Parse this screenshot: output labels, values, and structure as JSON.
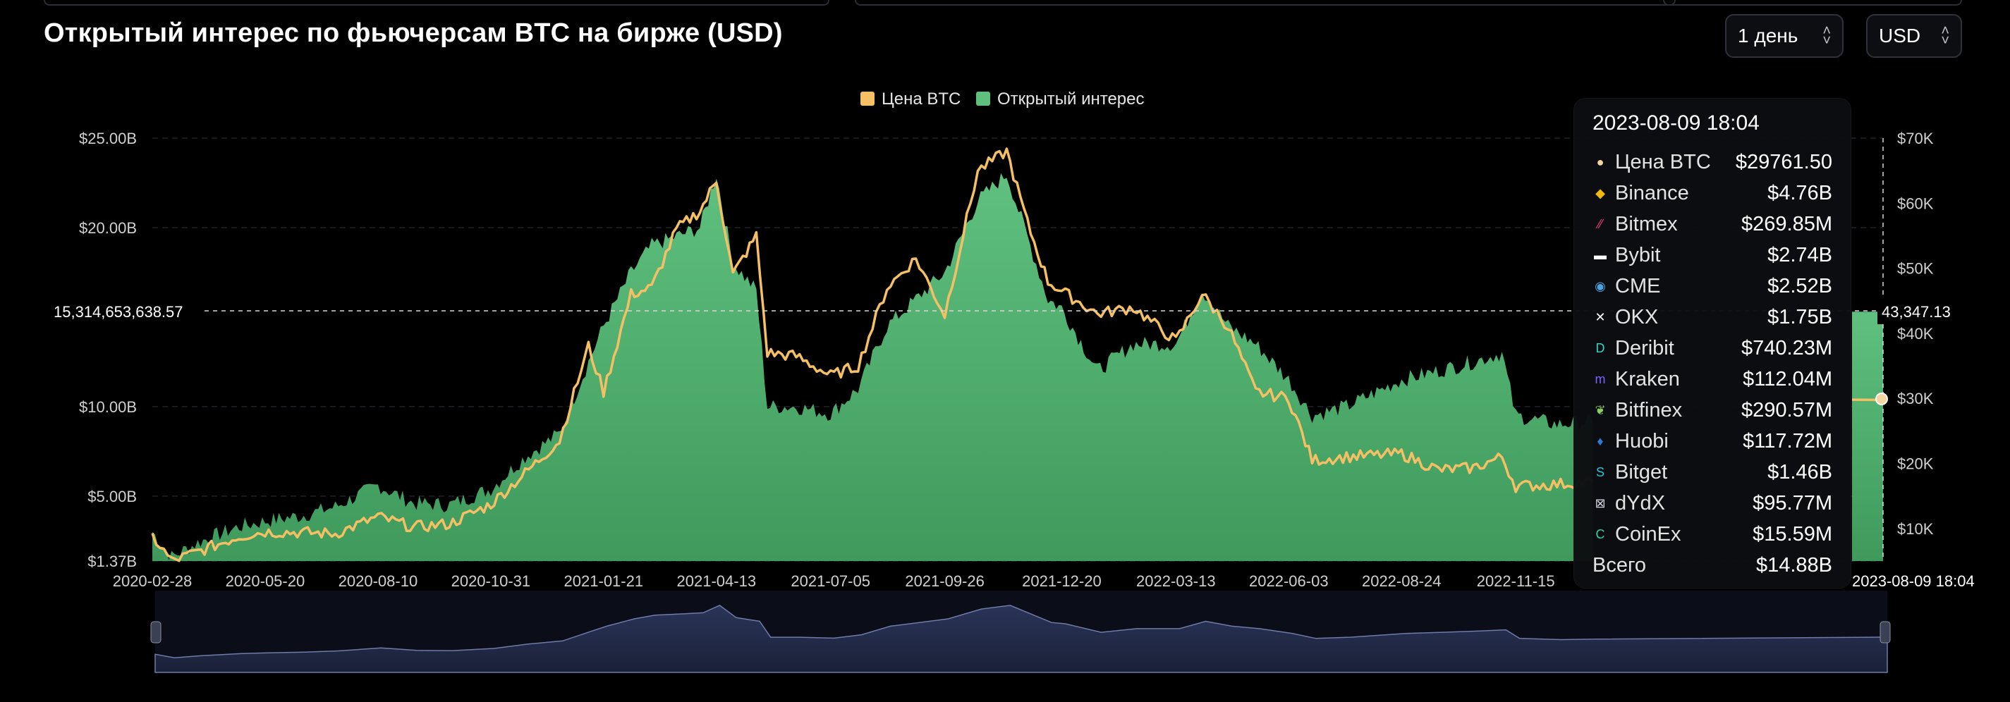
{
  "page": {
    "title": "Открытый интерес по фьючерсам BTC на бирже (USD)",
    "interval_select": "1 день",
    "currency_select": "USD"
  },
  "colors": {
    "background": "#000000",
    "btc_price": "#f5c065",
    "open_interest": "#5fbf7d",
    "navigator": "#1c2540"
  },
  "chart_data": {
    "type": "area",
    "title": "Открытый интерес по фьючерсам BTC на бирже (USD)",
    "legend": {
      "position": "top-center",
      "entries": [
        {
          "name": "Цена BTC",
          "color": "#f5c065"
        },
        {
          "name": "Открытый интерес",
          "color": "#5fbf7d"
        }
      ]
    },
    "x_ticks": [
      "2020-02-28",
      "2020-05-20",
      "2020-08-10",
      "2020-10-31",
      "2021-01-21",
      "2021-04-13",
      "2021-07-05",
      "2021-09-26",
      "2021-12-20",
      "2022-03-13",
      "2022-06-03",
      "2022-08-24",
      "2022-11-15"
    ],
    "y_left_ticks": [
      "$1.37B",
      "$5.00B",
      "$10.00B",
      "$20.00B",
      "$25.00B"
    ],
    "y_right_ticks": [
      "$10K",
      "$20K",
      "$30K",
      "$40K",
      "$50K",
      "$60K",
      "$70K"
    ],
    "y_left_range": [
      1.37,
      25
    ],
    "y_right_range": [
      5000,
      70000
    ],
    "grid": true,
    "crosshair": {
      "left_value": "15,314,653,638.57",
      "right_value": "43,347.13",
      "x_label": "2023-08-09 18:04"
    },
    "series": [
      {
        "name": "Открытый интерес",
        "axis": "left",
        "unit": "B USD",
        "points": [
          [
            "2020-02-28",
            3.0
          ],
          [
            "2020-03-13",
            1.6
          ],
          [
            "2020-04-01",
            2.4
          ],
          [
            "2020-05-01",
            3.3
          ],
          [
            "2020-05-20",
            3.6
          ],
          [
            "2020-06-15",
            3.9
          ],
          [
            "2020-07-10",
            4.4
          ],
          [
            "2020-08-10",
            5.6
          ],
          [
            "2020-09-05",
            4.6
          ],
          [
            "2020-10-01",
            4.5
          ],
          [
            "2020-10-31",
            5.4
          ],
          [
            "2020-11-25",
            7.2
          ],
          [
            "2020-12-20",
            8.5
          ],
          [
            "2021-01-10",
            12.5
          ],
          [
            "2021-01-21",
            14.5
          ],
          [
            "2021-02-10",
            17.5
          ],
          [
            "2021-02-25",
            19.0
          ],
          [
            "2021-03-15",
            19.5
          ],
          [
            "2021-04-01",
            20.0
          ],
          [
            "2021-04-13",
            23.0
          ],
          [
            "2021-04-25",
            18.0
          ],
          [
            "2021-05-12",
            16.5
          ],
          [
            "2021-05-20",
            10.0
          ],
          [
            "2021-06-10",
            10.0
          ],
          [
            "2021-07-05",
            9.6
          ],
          [
            "2021-07-25",
            11.0
          ],
          [
            "2021-08-15",
            14.5
          ],
          [
            "2021-09-05",
            16.0
          ],
          [
            "2021-09-26",
            17.5
          ],
          [
            "2021-10-20",
            21.5
          ],
          [
            "2021-11-10",
            23.0
          ],
          [
            "2021-11-25",
            19.5
          ],
          [
            "2021-12-10",
            16.0
          ],
          [
            "2021-12-20",
            15.5
          ],
          [
            "2022-01-15",
            12.0
          ],
          [
            "2022-02-10",
            13.5
          ],
          [
            "2022-03-13",
            13.5
          ],
          [
            "2022-04-01",
            16.5
          ],
          [
            "2022-04-20",
            14.5
          ],
          [
            "2022-05-10",
            13.5
          ],
          [
            "2022-06-03",
            11.5
          ],
          [
            "2022-06-20",
            9.5
          ],
          [
            "2022-07-15",
            10.0
          ],
          [
            "2022-08-24",
            11.5
          ],
          [
            "2022-09-20",
            12.0
          ],
          [
            "2022-10-15",
            12.5
          ],
          [
            "2022-11-05",
            13.0
          ],
          [
            "2022-11-15",
            9.5
          ],
          [
            "2022-12-15",
            9.0
          ],
          [
            "2023-01-10",
            9.2
          ]
        ]
      },
      {
        "name": "Цена BTC",
        "axis": "right",
        "unit": "USD",
        "points": [
          [
            "2020-02-28",
            8800
          ],
          [
            "2020-03-13",
            5000
          ],
          [
            "2020-04-01",
            6400
          ],
          [
            "2020-05-01",
            8800
          ],
          [
            "2020-05-20",
            9500
          ],
          [
            "2020-06-15",
            9400
          ],
          [
            "2020-07-10",
            9200
          ],
          [
            "2020-08-10",
            11800
          ],
          [
            "2020-09-05",
            10200
          ],
          [
            "2020-10-01",
            10700
          ],
          [
            "2020-10-31",
            13700
          ],
          [
            "2020-11-25",
            18500
          ],
          [
            "2020-12-20",
            23500
          ],
          [
            "2021-01-10",
            38000
          ],
          [
            "2021-01-21",
            31000
          ],
          [
            "2021-02-10",
            46000
          ],
          [
            "2021-02-25",
            47000
          ],
          [
            "2021-03-15",
            56000
          ],
          [
            "2021-04-01",
            58800
          ],
          [
            "2021-04-13",
            63500
          ],
          [
            "2021-04-25",
            49000
          ],
          [
            "2021-05-12",
            55000
          ],
          [
            "2021-05-20",
            37000
          ],
          [
            "2021-06-10",
            36500
          ],
          [
            "2021-07-05",
            33500
          ],
          [
            "2021-07-25",
            35000
          ],
          [
            "2021-08-15",
            47000
          ],
          [
            "2021-09-05",
            51500
          ],
          [
            "2021-09-26",
            42800
          ],
          [
            "2021-10-20",
            65000
          ],
          [
            "2021-11-10",
            68000
          ],
          [
            "2021-11-25",
            57000
          ],
          [
            "2021-12-10",
            48000
          ],
          [
            "2021-12-20",
            46500
          ],
          [
            "2022-01-15",
            43000
          ],
          [
            "2022-02-10",
            44000
          ],
          [
            "2022-03-13",
            38800
          ],
          [
            "2022-04-01",
            46000
          ],
          [
            "2022-04-20",
            41000
          ],
          [
            "2022-05-10",
            31000
          ],
          [
            "2022-06-03",
            30000
          ],
          [
            "2022-06-20",
            20500
          ],
          [
            "2022-07-15",
            21000
          ],
          [
            "2022-08-24",
            21500
          ],
          [
            "2022-09-20",
            19000
          ],
          [
            "2022-10-15",
            19300
          ],
          [
            "2022-11-05",
            21000
          ],
          [
            "2022-11-15",
            16500
          ],
          [
            "2022-12-15",
            16800
          ],
          [
            "2023-01-10",
            17200
          ]
        ]
      }
    ]
  },
  "tooltip": {
    "timestamp": "2023-08-09 18:04",
    "rows": [
      {
        "icon": "btc-price-dot-icon",
        "label": "Цена BTC",
        "value": "$29761.50",
        "color": "#f5d6a0"
      },
      {
        "icon": "binance-icon",
        "label": "Binance",
        "value": "$4.76B",
        "color": "#f0b90b"
      },
      {
        "icon": "bitmex-icon",
        "label": "Bitmex",
        "value": "$269.85M",
        "color": "#e2456b"
      },
      {
        "icon": "bybit-icon",
        "label": "Bybit",
        "value": "$2.74B",
        "color": "#ffffff"
      },
      {
        "icon": "cme-icon",
        "label": "CME",
        "value": "$2.52B",
        "color": "#4da3e0"
      },
      {
        "icon": "okx-icon",
        "label": "OKX",
        "value": "$1.75B",
        "color": "#ffffff"
      },
      {
        "icon": "deribit-icon",
        "label": "Deribit",
        "value": "$740.23M",
        "color": "#2bd9c2"
      },
      {
        "icon": "kraken-icon",
        "label": "Kraken",
        "value": "$112.04M",
        "color": "#7b61ff"
      },
      {
        "icon": "bitfinex-icon",
        "label": "Bitfinex",
        "value": "$290.57M",
        "color": "#8ad15c"
      },
      {
        "icon": "huobi-icon",
        "label": "Huobi",
        "value": "$117.72M",
        "color": "#2a7fd4"
      },
      {
        "icon": "bitget-icon",
        "label": "Bitget",
        "value": "$1.46B",
        "color": "#25c5d6"
      },
      {
        "icon": "dydx-icon",
        "label": "dYdX",
        "value": "$95.77M",
        "color": "#cfd3dc"
      },
      {
        "icon": "coinex-icon",
        "label": "CoinEx",
        "value": "$15.59M",
        "color": "#2fd2a6"
      },
      {
        "icon": "",
        "label": "Всего",
        "value": "$14.88B",
        "color": ""
      }
    ]
  }
}
